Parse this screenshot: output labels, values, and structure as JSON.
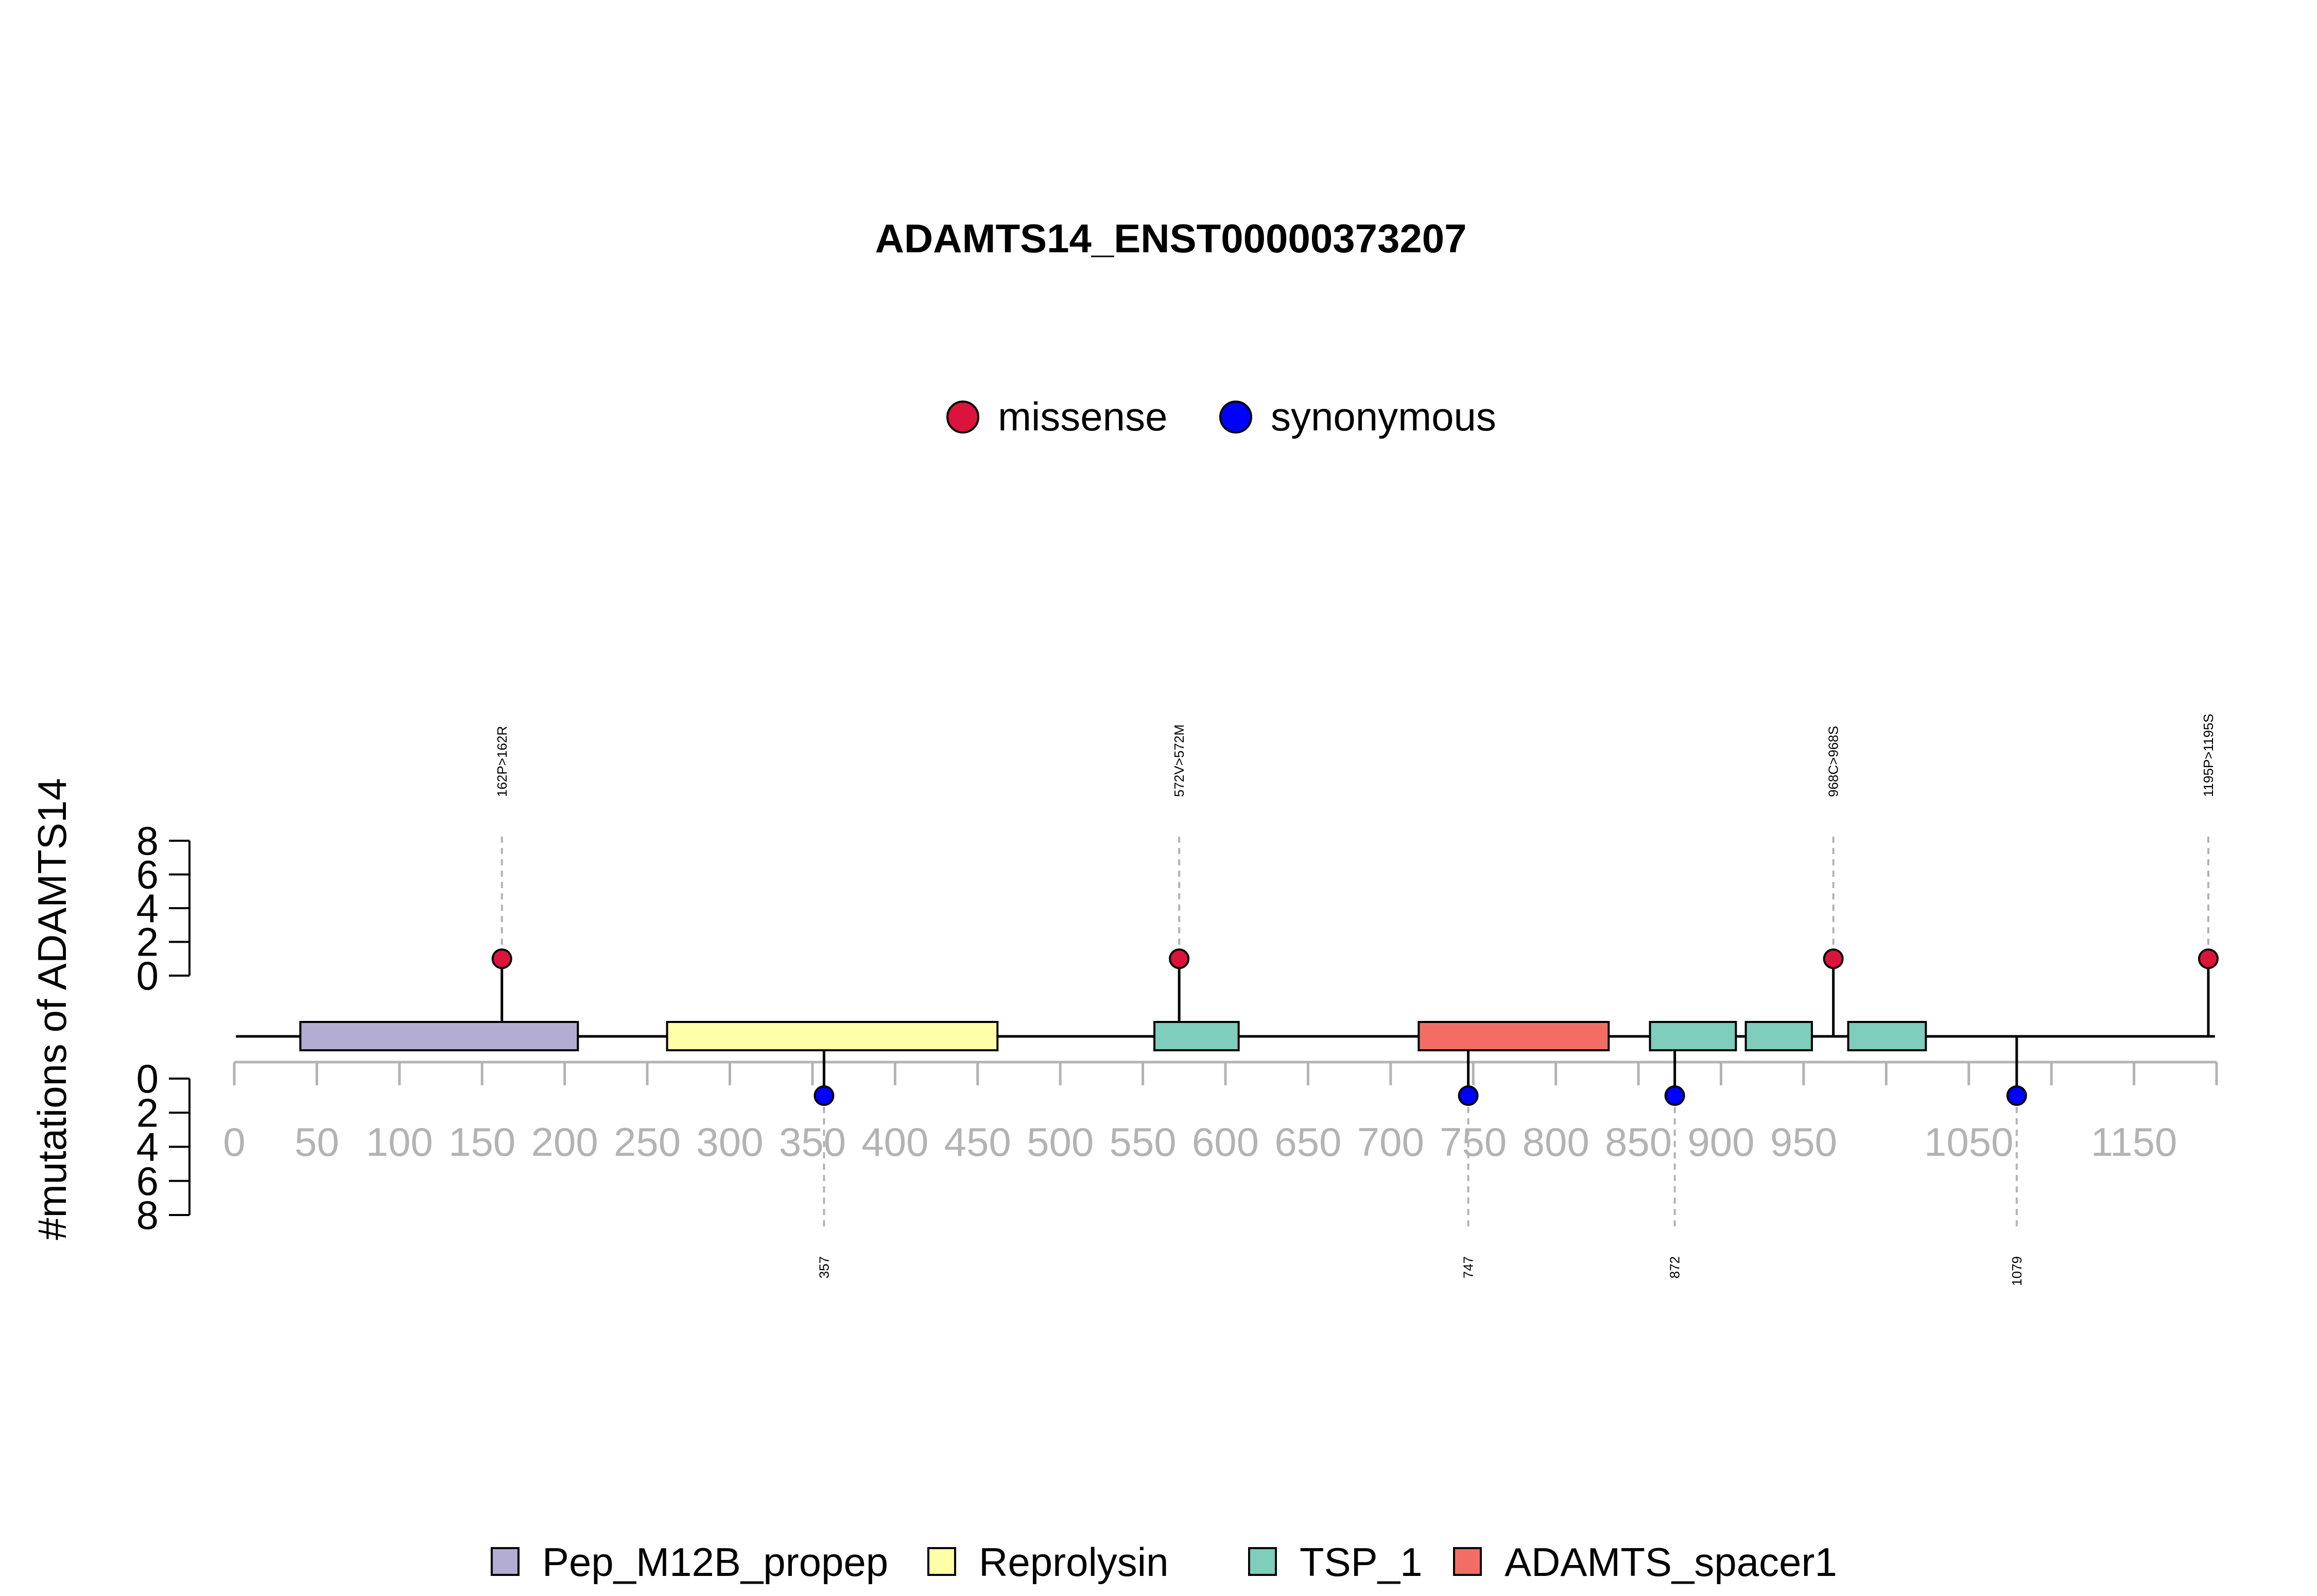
{
  "chart_data": {
    "type": "lollipop",
    "title": "ADAMTS14_ENST00000373207",
    "ylabel": "#mutations of ADAMTS14",
    "xlim": [
      0,
      1200
    ],
    "x_ticks": [
      0,
      50,
      100,
      150,
      200,
      250,
      300,
      350,
      400,
      450,
      500,
      550,
      600,
      650,
      700,
      750,
      800,
      850,
      900,
      950,
      1000,
      1050,
      1100,
      1150,
      1200
    ],
    "x_tick_labels": [
      "0",
      "50",
      "100",
      "150",
      "200",
      "250",
      "300",
      "350",
      "400",
      "450",
      "500",
      "550",
      "600",
      "650",
      "700",
      "750",
      "800",
      "850",
      "900",
      "950",
      "",
      "1050",
      "",
      "1150",
      ""
    ],
    "y_ticks_top": [
      "8",
      "6",
      "4",
      "2",
      "0"
    ],
    "y_ticks_bottom": [
      "0",
      "2",
      "4",
      "6",
      "8"
    ],
    "ylim": [
      0,
      8
    ],
    "mutation_legend": [
      {
        "name": "missense",
        "color": "#dc143c"
      },
      {
        "name": "synonymous",
        "color": "#0000ff"
      }
    ],
    "mutations": [
      {
        "position": 162,
        "label": "162P>162R",
        "type": "missense",
        "count": 1,
        "side": "top"
      },
      {
        "position": 572,
        "label": "572V>572M",
        "type": "missense",
        "count": 1,
        "side": "top"
      },
      {
        "position": 968,
        "label": "968C>968S",
        "type": "missense",
        "count": 1,
        "side": "top"
      },
      {
        "position": 1195,
        "label": "1195P>1195S",
        "type": "missense",
        "count": 1,
        "side": "top"
      },
      {
        "position": 357,
        "label": "357",
        "type": "synonymous",
        "count": 1,
        "side": "bottom"
      },
      {
        "position": 747,
        "label": "747",
        "type": "synonymous",
        "count": 1,
        "side": "bottom"
      },
      {
        "position": 872,
        "label": "872",
        "type": "synonymous",
        "count": 1,
        "side": "bottom"
      },
      {
        "position": 1079,
        "label": "1079",
        "type": "synonymous",
        "count": 1,
        "side": "bottom"
      }
    ],
    "domains": [
      {
        "name": "Pep_M12B_propep",
        "start": 40,
        "end": 208
      },
      {
        "name": "Reprolysin",
        "start": 262,
        "end": 462
      },
      {
        "name": "TSP_1",
        "start": 557,
        "end": 608
      },
      {
        "name": "ADAMTS_spacer1",
        "start": 717,
        "end": 832
      },
      {
        "name": "TSP_1",
        "start": 857,
        "end": 909
      },
      {
        "name": "TSP_1",
        "start": 915,
        "end": 955
      },
      {
        "name": "TSP_1",
        "start": 977,
        "end": 1024
      }
    ],
    "domain_legend": [
      {
        "name": "Pep_M12B_propep",
        "color": "#b3acd3"
      },
      {
        "name": "Reprolysin",
        "color": "#ffffa8"
      },
      {
        "name": "TSP_1",
        "color": "#7fcdbb"
      },
      {
        "name": "ADAMTS_spacer1",
        "color": "#f46d64"
      }
    ]
  }
}
